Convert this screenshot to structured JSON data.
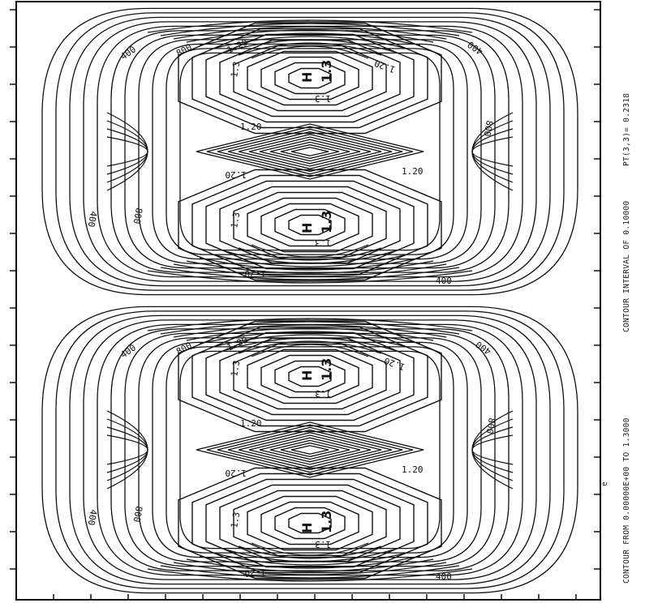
{
  "caption": {
    "range": "CONTOUR FROM  0.00000E+00 TO   1.3000",
    "interval": "CONTOUR INTERVAL OF  0.10000",
    "point": "PT(3,3)=  0.2318"
  },
  "corner_mark": "e",
  "lobes": [
    {
      "labels": {
        "outer_left": "400",
        "mid_left": "800",
        "inner_left": "1.20",
        "outer_right": "400",
        "mid_right": "800",
        "inner_right": "1.20",
        "lower_outer_left": "400",
        "lower_mid_left": "800",
        "center_upper": "1.20",
        "center_lower": "1.20",
        "bottom": "400",
        "bottom_inner": "1.20"
      },
      "upper_peak": {
        "letter": "H",
        "value": "1.3",
        "side": "1.3",
        "lower": "1.3",
        "left": "1.3"
      },
      "lower_peak": {
        "letter": "H",
        "value": "1.3",
        "side": "1.3",
        "lower": "1.3",
        "left": "1.3"
      }
    },
    {
      "labels": {
        "outer_left": "400",
        "mid_left": "800",
        "inner_left": "1.20",
        "outer_right": "400",
        "mid_right": "800",
        "inner_right": "1.20",
        "lower_outer_left": "400",
        "lower_mid_left": "800",
        "center_upper": "1.20",
        "center_lower": "1.20",
        "bottom": "400",
        "bottom_inner": "1.20"
      },
      "upper_peak": {
        "letter": "H",
        "value": "1.3",
        "side": "1.3",
        "lower": "1.3",
        "left": "1.3"
      },
      "lower_peak": {
        "letter": "H",
        "value": "1.3",
        "side": "1.3",
        "lower": "1.3",
        "left": "1.3"
      }
    }
  ]
}
